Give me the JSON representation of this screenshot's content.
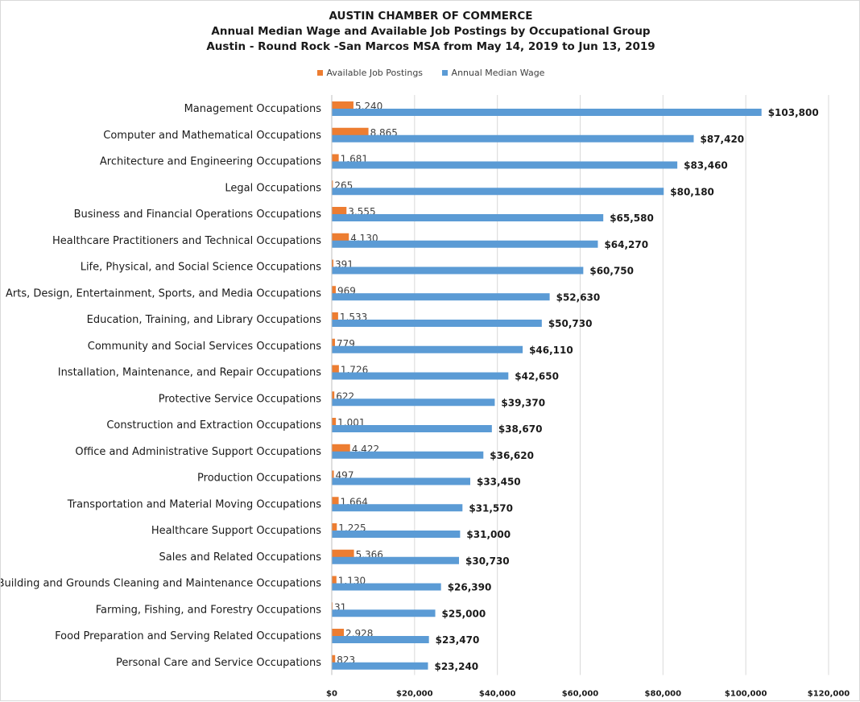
{
  "title_lines": [
    "AUSTIN CHAMBER OF COMMERCE",
    "Annual Median Wage and Available Job Postings by Occupational Group",
    "Austin - Round Rock -San Marcos MSA from May 14, 2019 to Jun 13, 2019"
  ],
  "legend": [
    {
      "label": "Available Job Postings",
      "color": "#ed7d31"
    },
    {
      "label": "Annual Median Wage",
      "color": "#5b9bd5"
    }
  ],
  "chart_data": {
    "type": "bar",
    "orientation": "horizontal",
    "title": "AUSTIN CHAMBER OF COMMERCE",
    "xlabel": "",
    "ylabel": "",
    "xlim": [
      0,
      120000
    ],
    "grid": true,
    "legend_position": "top-center",
    "x_ticks": [
      "$0",
      "$20,000",
      "$40,000",
      "$60,000",
      "$80,000",
      "$100,000",
      "$120,000"
    ],
    "categories": [
      "Management Occupations",
      "Computer and Mathematical Occupations",
      "Architecture and Engineering Occupations",
      "Legal Occupations",
      "Business and Financial Operations Occupations",
      "Healthcare Practitioners and Technical Occupations",
      "Life, Physical, and Social Science Occupations",
      "Arts, Design, Entertainment, Sports, and Media Occupations",
      "Education, Training, and Library Occupations",
      "Community and Social Services Occupations",
      "Installation, Maintenance, and Repair Occupations",
      "Protective Service Occupations",
      "Construction and Extraction Occupations",
      "Office and Administrative Support Occupations",
      "Production Occupations",
      "Transportation and Material Moving Occupations",
      "Healthcare Support Occupations",
      "Sales and Related Occupations",
      "Building and Grounds Cleaning and Maintenance Occupations",
      "Farming, Fishing, and Forestry Occupations",
      "Food Preparation and Serving Related Occupations",
      "Personal Care and Service Occupations"
    ],
    "series": [
      {
        "name": "Available Job Postings",
        "color": "#ed7d31",
        "values": [
          5240,
          8865,
          1681,
          265,
          3555,
          4130,
          391,
          969,
          1533,
          779,
          1726,
          622,
          1001,
          4422,
          497,
          1664,
          1225,
          5366,
          1130,
          31,
          2928,
          823
        ],
        "labels": [
          "5,240",
          "8,865",
          "1,681",
          "265",
          "3,555",
          "4,130",
          "391",
          "969",
          "1,533",
          "779",
          "1,726",
          "622",
          "1,001",
          "4,422",
          "497",
          "1,664",
          "1,225",
          "5,366",
          "1,130",
          "31",
          "2,928",
          "823"
        ]
      },
      {
        "name": "Annual Median Wage",
        "color": "#5b9bd5",
        "values": [
          103800,
          87420,
          83460,
          80180,
          65580,
          64270,
          60750,
          52630,
          50730,
          46110,
          42650,
          39370,
          38670,
          36620,
          33450,
          31570,
          31000,
          30730,
          26390,
          25000,
          23470,
          23240
        ],
        "labels": [
          "$103,800",
          "$87,420",
          "$83,460",
          "$80,180",
          "$65,580",
          "$64,270",
          "$60,750",
          "$52,630",
          "$50,730",
          "$46,110",
          "$42,650",
          "$39,370",
          "$38,670",
          "$36,620",
          "$33,450",
          "$31,570",
          "$31,000",
          "$30,730",
          "$26,390",
          "$25,000",
          "$23,470",
          "$23,240"
        ]
      }
    ]
  }
}
